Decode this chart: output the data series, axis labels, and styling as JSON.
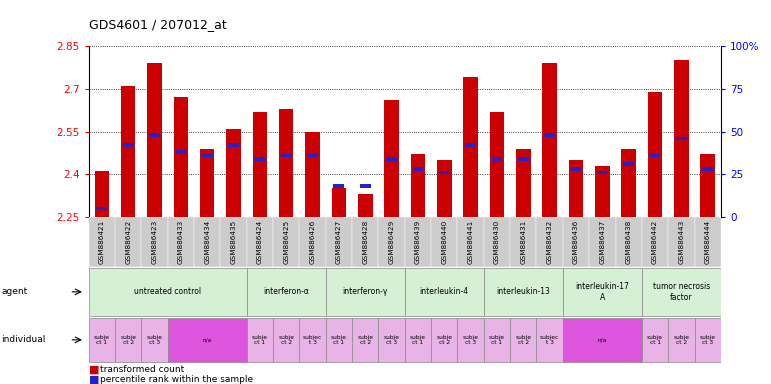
{
  "title": "GDS4601 / 207012_at",
  "samples": [
    "GSM886421",
    "GSM886422",
    "GSM886423",
    "GSM886433",
    "GSM886434",
    "GSM886435",
    "GSM886424",
    "GSM886425",
    "GSM886426",
    "GSM886427",
    "GSM886428",
    "GSM886429",
    "GSM886439",
    "GSM886440",
    "GSM886441",
    "GSM886430",
    "GSM886431",
    "GSM886432",
    "GSM886436",
    "GSM886437",
    "GSM886438",
    "GSM886442",
    "GSM886443",
    "GSM886444"
  ],
  "red_values": [
    2.41,
    2.71,
    2.79,
    2.67,
    2.49,
    2.56,
    2.62,
    2.63,
    2.55,
    2.35,
    2.33,
    2.66,
    2.47,
    2.45,
    2.74,
    2.62,
    2.49,
    2.79,
    2.45,
    2.43,
    2.49,
    2.69,
    2.8,
    2.47
  ],
  "blue_percentiles": [
    5,
    42,
    48,
    38,
    36,
    42,
    34,
    36,
    36,
    18,
    18,
    34,
    28,
    26,
    42,
    34,
    34,
    48,
    28,
    26,
    31,
    36,
    46,
    28
  ],
  "ymin": 2.25,
  "ymax": 2.85,
  "yticks": [
    2.25,
    2.4,
    2.55,
    2.7,
    2.85
  ],
  "ytick_labels": [
    "2.25",
    "2.4",
    "2.55",
    "2.7",
    "2.85"
  ],
  "right_yticks": [
    0,
    25,
    50,
    75,
    100
  ],
  "right_ytick_labels": [
    "0",
    "25",
    "50",
    "75",
    "100%"
  ],
  "agents": [
    {
      "label": "untreated control",
      "start": 0,
      "end": 6,
      "color": "#d5f0d5"
    },
    {
      "label": "interferon-α",
      "start": 6,
      "end": 9,
      "color": "#d5f0d5"
    },
    {
      "label": "interferon-γ",
      "start": 9,
      "end": 12,
      "color": "#d5f0d5"
    },
    {
      "label": "interleukin-4",
      "start": 12,
      "end": 15,
      "color": "#d5f0d5"
    },
    {
      "label": "interleukin-13",
      "start": 15,
      "end": 18,
      "color": "#d5f0d5"
    },
    {
      "label": "interleukin-17\nA",
      "start": 18,
      "end": 21,
      "color": "#d5f0d5"
    },
    {
      "label": "tumor necrosis\nfactor",
      "start": 21,
      "end": 24,
      "color": "#d5f0d5"
    }
  ],
  "individuals": [
    {
      "label": "subje\nct 1",
      "start": 0,
      "end": 1,
      "color": "#e8b4e8"
    },
    {
      "label": "subje\nct 2",
      "start": 1,
      "end": 2,
      "color": "#e8b4e8"
    },
    {
      "label": "subje\nct 3",
      "start": 2,
      "end": 3,
      "color": "#e8b4e8"
    },
    {
      "label": "n/a",
      "start": 3,
      "end": 6,
      "color": "#dd55dd"
    },
    {
      "label": "subje\nct 1",
      "start": 6,
      "end": 7,
      "color": "#e8b4e8"
    },
    {
      "label": "subje\nct 2",
      "start": 7,
      "end": 8,
      "color": "#e8b4e8"
    },
    {
      "label": "subjec\nt 3",
      "start": 8,
      "end": 9,
      "color": "#e8b4e8"
    },
    {
      "label": "subje\nct 1",
      "start": 9,
      "end": 10,
      "color": "#e8b4e8"
    },
    {
      "label": "subje\nct 2",
      "start": 10,
      "end": 11,
      "color": "#e8b4e8"
    },
    {
      "label": "subje\nct 3",
      "start": 11,
      "end": 12,
      "color": "#e8b4e8"
    },
    {
      "label": "subje\nct 1",
      "start": 12,
      "end": 13,
      "color": "#e8b4e8"
    },
    {
      "label": "subje\nct 2",
      "start": 13,
      "end": 14,
      "color": "#e8b4e8"
    },
    {
      "label": "subje\nct 3",
      "start": 14,
      "end": 15,
      "color": "#e8b4e8"
    },
    {
      "label": "subje\nct 1",
      "start": 15,
      "end": 16,
      "color": "#e8b4e8"
    },
    {
      "label": "subje\nct 2",
      "start": 16,
      "end": 17,
      "color": "#e8b4e8"
    },
    {
      "label": "subjec\nt 3",
      "start": 17,
      "end": 18,
      "color": "#e8b4e8"
    },
    {
      "label": "n/a",
      "start": 18,
      "end": 21,
      "color": "#dd55dd"
    },
    {
      "label": "subje\nct 1",
      "start": 21,
      "end": 22,
      "color": "#e8b4e8"
    },
    {
      "label": "subje\nct 2",
      "start": 22,
      "end": 23,
      "color": "#e8b4e8"
    },
    {
      "label": "subje\nct 3",
      "start": 23,
      "end": 24,
      "color": "#e8b4e8"
    }
  ],
  "bar_color": "#cc0000",
  "blue_color": "#2222cc",
  "bar_width": 0.55,
  "sample_bg_color": "#cccccc",
  "legend_items": [
    {
      "color": "#cc0000",
      "label": "transformed count"
    },
    {
      "color": "#2222cc",
      "label": "percentile rank within the sample"
    }
  ]
}
